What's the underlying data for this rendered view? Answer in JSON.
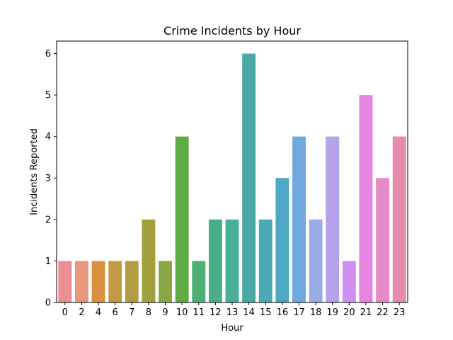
{
  "chart_data": {
    "type": "bar",
    "title": "Crime Incidents by Hour",
    "xlabel": "Hour",
    "ylabel": "Incidents Reported",
    "categories": [
      "0",
      "2",
      "4",
      "6",
      "7",
      "8",
      "9",
      "10",
      "11",
      "12",
      "13",
      "14",
      "15",
      "16",
      "17",
      "18",
      "19",
      "20",
      "21",
      "22",
      "23"
    ],
    "values": [
      1,
      1,
      1,
      1,
      1,
      2,
      1,
      4,
      1,
      2,
      2,
      6,
      2,
      3,
      4,
      2,
      4,
      1,
      5,
      3,
      4
    ],
    "colors": [
      "#ea8f95",
      "#e8977a",
      "#d9913f",
      "#c29a45",
      "#b29d45",
      "#a2a03d",
      "#8aa746",
      "#5fac44",
      "#4daf73",
      "#4aaf87",
      "#48ad99",
      "#49aaa5",
      "#4baab3",
      "#4da7c5",
      "#6fa9dd",
      "#9aabe6",
      "#b6a2ea",
      "#cf8ff0",
      "#e784e1",
      "#e48bc8",
      "#e68cb0"
    ],
    "yticks": [
      0,
      1,
      2,
      3,
      4,
      5,
      6
    ],
    "ylim": [
      0,
      6.3
    ],
    "grid": false,
    "legend": "none"
  }
}
